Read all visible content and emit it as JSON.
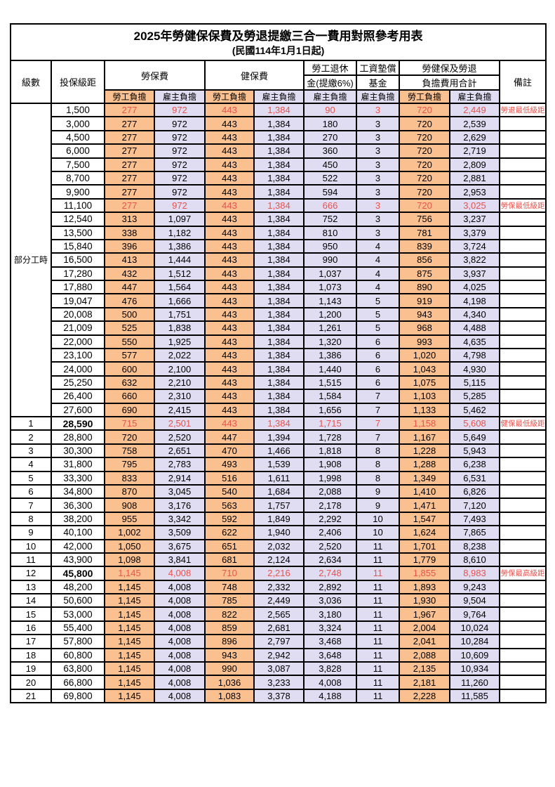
{
  "title": "2025年勞健保保費及勞退提繳三合一費用對照參考用表",
  "subtitle": "(民國114年1月1日起)",
  "colors": {
    "employee_col_bg": "#FAC090",
    "employer_col_bg": "#E0DCF1",
    "highlight_text": "#e8534e",
    "border": "#000000"
  },
  "header": {
    "level": "級數",
    "bracket": "投保級距",
    "labor_insurance": "勞保費",
    "health_insurance": "健保費",
    "pension_line1": "勞工退休",
    "pension_line2": "金(提繳6%)",
    "wage_fund_line1": "工資墊償",
    "wage_fund_line2": "基金",
    "total_line1": "勞健保及勞退",
    "total_line2": "負擔費用合計",
    "remark": "備註",
    "employee": "勞工負擔",
    "employer": "雇主負擔"
  },
  "table": {
    "part_time_label": "部分工時",
    "part_time_span": 23,
    "rows": [
      {
        "level": "",
        "bracket": "1,500",
        "v": [
          "277",
          "972",
          "443",
          "1,384",
          "90",
          "3",
          "720",
          "2,449"
        ],
        "remark": "勞退最低級距",
        "hl": true,
        "bold": false
      },
      {
        "level": "",
        "bracket": "3,000",
        "v": [
          "277",
          "972",
          "443",
          "1,384",
          "180",
          "3",
          "720",
          "2,539"
        ],
        "remark": "",
        "hl": false,
        "bold": false
      },
      {
        "level": "",
        "bracket": "4,500",
        "v": [
          "277",
          "972",
          "443",
          "1,384",
          "270",
          "3",
          "720",
          "2,629"
        ],
        "remark": "",
        "hl": false,
        "bold": false
      },
      {
        "level": "",
        "bracket": "6,000",
        "v": [
          "277",
          "972",
          "443",
          "1,384",
          "360",
          "3",
          "720",
          "2,719"
        ],
        "remark": "",
        "hl": false,
        "bold": false
      },
      {
        "level": "",
        "bracket": "7,500",
        "v": [
          "277",
          "972",
          "443",
          "1,384",
          "450",
          "3",
          "720",
          "2,809"
        ],
        "remark": "",
        "hl": false,
        "bold": false
      },
      {
        "level": "",
        "bracket": "8,700",
        "v": [
          "277",
          "972",
          "443",
          "1,384",
          "522",
          "3",
          "720",
          "2,881"
        ],
        "remark": "",
        "hl": false,
        "bold": false
      },
      {
        "level": "",
        "bracket": "9,900",
        "v": [
          "277",
          "972",
          "443",
          "1,384",
          "594",
          "3",
          "720",
          "2,953"
        ],
        "remark": "",
        "hl": false,
        "bold": false
      },
      {
        "level": "",
        "bracket": "11,100",
        "v": [
          "277",
          "972",
          "443",
          "1,384",
          "666",
          "3",
          "720",
          "3,025"
        ],
        "remark": "勞保最低級距",
        "hl": true,
        "bold": false
      },
      {
        "level": "",
        "bracket": "12,540",
        "v": [
          "313",
          "1,097",
          "443",
          "1,384",
          "752",
          "3",
          "756",
          "3,237"
        ],
        "remark": "",
        "hl": false,
        "bold": false
      },
      {
        "level": "",
        "bracket": "13,500",
        "v": [
          "338",
          "1,182",
          "443",
          "1,384",
          "810",
          "3",
          "781",
          "3,379"
        ],
        "remark": "",
        "hl": false,
        "bold": false
      },
      {
        "level": "",
        "bracket": "15,840",
        "v": [
          "396",
          "1,386",
          "443",
          "1,384",
          "950",
          "4",
          "839",
          "3,724"
        ],
        "remark": "",
        "hl": false,
        "bold": false
      },
      {
        "level": "",
        "bracket": "16,500",
        "v": [
          "413",
          "1,444",
          "443",
          "1,384",
          "990",
          "4",
          "856",
          "3,822"
        ],
        "remark": "",
        "hl": false,
        "bold": false
      },
      {
        "level": "",
        "bracket": "17,280",
        "v": [
          "432",
          "1,512",
          "443",
          "1,384",
          "1,037",
          "4",
          "875",
          "3,937"
        ],
        "remark": "",
        "hl": false,
        "bold": false
      },
      {
        "level": "",
        "bracket": "17,880",
        "v": [
          "447",
          "1,564",
          "443",
          "1,384",
          "1,073",
          "4",
          "890",
          "4,025"
        ],
        "remark": "",
        "hl": false,
        "bold": false
      },
      {
        "level": "",
        "bracket": "19,047",
        "v": [
          "476",
          "1,666",
          "443",
          "1,384",
          "1,143",
          "5",
          "919",
          "4,198"
        ],
        "remark": "",
        "hl": false,
        "bold": false
      },
      {
        "level": "",
        "bracket": "20,008",
        "v": [
          "500",
          "1,751",
          "443",
          "1,384",
          "1,200",
          "5",
          "943",
          "4,340"
        ],
        "remark": "",
        "hl": false,
        "bold": false
      },
      {
        "level": "",
        "bracket": "21,009",
        "v": [
          "525",
          "1,838",
          "443",
          "1,384",
          "1,261",
          "5",
          "968",
          "4,488"
        ],
        "remark": "",
        "hl": false,
        "bold": false
      },
      {
        "level": "",
        "bracket": "22,000",
        "v": [
          "550",
          "1,925",
          "443",
          "1,384",
          "1,320",
          "6",
          "993",
          "4,635"
        ],
        "remark": "",
        "hl": false,
        "bold": false
      },
      {
        "level": "",
        "bracket": "23,100",
        "v": [
          "577",
          "2,022",
          "443",
          "1,384",
          "1,386",
          "6",
          "1,020",
          "4,798"
        ],
        "remark": "",
        "hl": false,
        "bold": false
      },
      {
        "level": "",
        "bracket": "24,000",
        "v": [
          "600",
          "2,100",
          "443",
          "1,384",
          "1,440",
          "6",
          "1,043",
          "4,930"
        ],
        "remark": "",
        "hl": false,
        "bold": false
      },
      {
        "level": "",
        "bracket": "25,250",
        "v": [
          "632",
          "2,210",
          "443",
          "1,384",
          "1,515",
          "6",
          "1,075",
          "5,115"
        ],
        "remark": "",
        "hl": false,
        "bold": false
      },
      {
        "level": "",
        "bracket": "26,400",
        "v": [
          "660",
          "2,310",
          "443",
          "1,384",
          "1,584",
          "7",
          "1,103",
          "5,285"
        ],
        "remark": "",
        "hl": false,
        "bold": false
      },
      {
        "level": "",
        "bracket": "27,600",
        "v": [
          "690",
          "2,415",
          "443",
          "1,384",
          "1,656",
          "7",
          "1,133",
          "5,462"
        ],
        "remark": "",
        "hl": false,
        "bold": false
      },
      {
        "level": "1",
        "bracket": "28,590",
        "v": [
          "715",
          "2,501",
          "443",
          "1,384",
          "1,715",
          "7",
          "1,158",
          "5,608"
        ],
        "remark": "健保最低級距",
        "hl": true,
        "bold": true
      },
      {
        "level": "2",
        "bracket": "28,800",
        "v": [
          "720",
          "2,520",
          "447",
          "1,394",
          "1,728",
          "7",
          "1,167",
          "5,649"
        ],
        "remark": "",
        "hl": false,
        "bold": false
      },
      {
        "level": "3",
        "bracket": "30,300",
        "v": [
          "758",
          "2,651",
          "470",
          "1,466",
          "1,818",
          "8",
          "1,228",
          "5,943"
        ],
        "remark": "",
        "hl": false,
        "bold": false
      },
      {
        "level": "4",
        "bracket": "31,800",
        "v": [
          "795",
          "2,783",
          "493",
          "1,539",
          "1,908",
          "8",
          "1,288",
          "6,238"
        ],
        "remark": "",
        "hl": false,
        "bold": false
      },
      {
        "level": "5",
        "bracket": "33,300",
        "v": [
          "833",
          "2,914",
          "516",
          "1,611",
          "1,998",
          "8",
          "1,349",
          "6,531"
        ],
        "remark": "",
        "hl": false,
        "bold": false
      },
      {
        "level": "6",
        "bracket": "34,800",
        "v": [
          "870",
          "3,045",
          "540",
          "1,684",
          "2,088",
          "9",
          "1,410",
          "6,826"
        ],
        "remark": "",
        "hl": false,
        "bold": false
      },
      {
        "level": "7",
        "bracket": "36,300",
        "v": [
          "908",
          "3,176",
          "563",
          "1,757",
          "2,178",
          "9",
          "1,471",
          "7,120"
        ],
        "remark": "",
        "hl": false,
        "bold": false
      },
      {
        "level": "8",
        "bracket": "38,200",
        "v": [
          "955",
          "3,342",
          "592",
          "1,849",
          "2,292",
          "10",
          "1,547",
          "7,493"
        ],
        "remark": "",
        "hl": false,
        "bold": false
      },
      {
        "level": "9",
        "bracket": "40,100",
        "v": [
          "1,002",
          "3,509",
          "622",
          "1,940",
          "2,406",
          "10",
          "1,624",
          "7,865"
        ],
        "remark": "",
        "hl": false,
        "bold": false
      },
      {
        "level": "10",
        "bracket": "42,000",
        "v": [
          "1,050",
          "3,675",
          "651",
          "2,032",
          "2,520",
          "11",
          "1,701",
          "8,238"
        ],
        "remark": "",
        "hl": false,
        "bold": false
      },
      {
        "level": "11",
        "bracket": "43,900",
        "v": [
          "1,098",
          "3,841",
          "681",
          "2,124",
          "2,634",
          "11",
          "1,779",
          "8,610"
        ],
        "remark": "",
        "hl": false,
        "bold": false
      },
      {
        "level": "12",
        "bracket": "45,800",
        "v": [
          "1,145",
          "4,008",
          "710",
          "2,216",
          "2,748",
          "11",
          "1,855",
          "8,983"
        ],
        "remark": "勞保最高級距",
        "hl": true,
        "bold": true
      },
      {
        "level": "13",
        "bracket": "48,200",
        "v": [
          "1,145",
          "4,008",
          "748",
          "2,332",
          "2,892",
          "11",
          "1,893",
          "9,243"
        ],
        "remark": "",
        "hl": false,
        "bold": false
      },
      {
        "level": "14",
        "bracket": "50,600",
        "v": [
          "1,145",
          "4,008",
          "785",
          "2,449",
          "3,036",
          "11",
          "1,930",
          "9,504"
        ],
        "remark": "",
        "hl": false,
        "bold": false
      },
      {
        "level": "15",
        "bracket": "53,000",
        "v": [
          "1,145",
          "4,008",
          "822",
          "2,565",
          "3,180",
          "11",
          "1,967",
          "9,764"
        ],
        "remark": "",
        "hl": false,
        "bold": false
      },
      {
        "level": "16",
        "bracket": "55,400",
        "v": [
          "1,145",
          "4,008",
          "859",
          "2,681",
          "3,324",
          "11",
          "2,004",
          "10,024"
        ],
        "remark": "",
        "hl": false,
        "bold": false
      },
      {
        "level": "17",
        "bracket": "57,800",
        "v": [
          "1,145",
          "4,008",
          "896",
          "2,797",
          "3,468",
          "11",
          "2,041",
          "10,284"
        ],
        "remark": "",
        "hl": false,
        "bold": false
      },
      {
        "level": "18",
        "bracket": "60,800",
        "v": [
          "1,145",
          "4,008",
          "943",
          "2,942",
          "3,648",
          "11",
          "2,088",
          "10,609"
        ],
        "remark": "",
        "hl": false,
        "bold": false
      },
      {
        "level": "19",
        "bracket": "63,800",
        "v": [
          "1,145",
          "4,008",
          "990",
          "3,087",
          "3,828",
          "11",
          "2,135",
          "10,934"
        ],
        "remark": "",
        "hl": false,
        "bold": false
      },
      {
        "level": "20",
        "bracket": "66,800",
        "v": [
          "1,145",
          "4,008",
          "1,036",
          "3,233",
          "4,008",
          "11",
          "2,181",
          "11,260"
        ],
        "remark": "",
        "hl": false,
        "bold": false
      },
      {
        "level": "21",
        "bracket": "69,800",
        "v": [
          "1,145",
          "4,008",
          "1,083",
          "3,378",
          "4,188",
          "11",
          "2,228",
          "11,585"
        ],
        "remark": "",
        "hl": false,
        "bold": false
      }
    ]
  }
}
